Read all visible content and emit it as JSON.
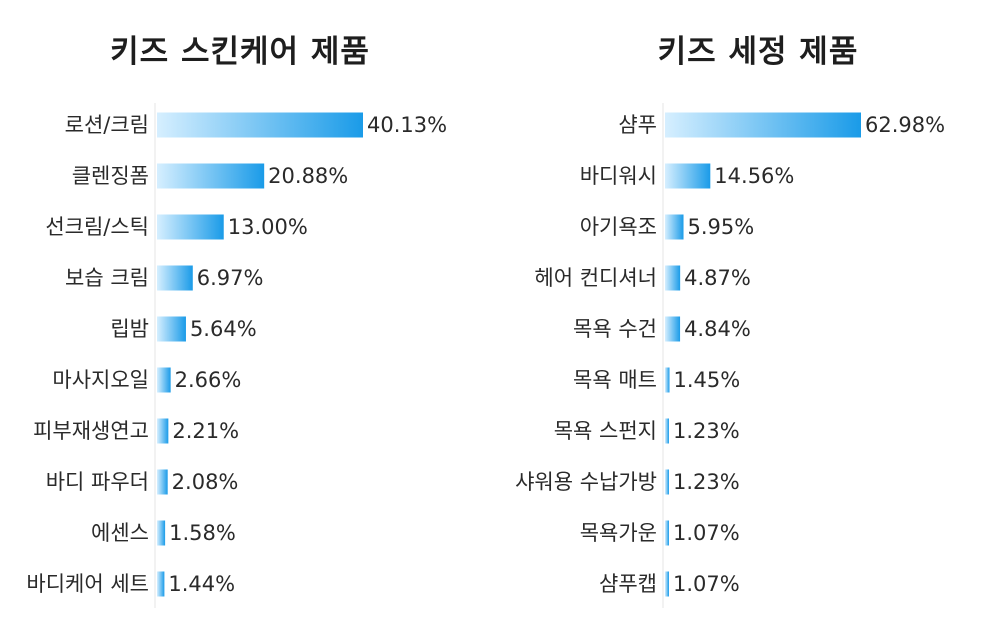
{
  "chart_data": [
    {
      "type": "bar",
      "orientation": "horizontal",
      "title": "키즈 스킨케어 제품",
      "categories": [
        "로션/크림",
        "클렌징폼",
        "선크림/스틱",
        "보습 크림",
        "립밤",
        "마사지오일",
        "피부재생연고",
        "바디 파우더",
        "에센스",
        "바디케어 세트"
      ],
      "values": [
        40.13,
        20.88,
        13.0,
        6.97,
        5.64,
        2.66,
        2.21,
        2.08,
        1.58,
        1.44
      ],
      "value_labels": [
        "40.13%",
        "20.88%",
        "13.00%",
        "6.97%",
        "5.64%",
        "2.66%",
        "2.21%",
        "2.08%",
        "1.58%",
        "1.44%"
      ],
      "unit": "%",
      "bar_color_start": "#d6efff",
      "bar_color_end": "#1a9be8"
    },
    {
      "type": "bar",
      "orientation": "horizontal",
      "title": "키즈 세정 제품",
      "categories": [
        "샴푸",
        "바디워시",
        "아기욕조",
        "헤어 컨디셔너",
        "목욕 수건",
        "목욕 매트",
        "목욕 스펀지",
        "샤워용 수납가방",
        "목욕가운",
        "샴푸캡"
      ],
      "values": [
        62.98,
        14.56,
        5.95,
        4.87,
        4.84,
        1.45,
        1.23,
        1.23,
        1.07,
        1.07
      ],
      "value_labels": [
        "62.98%",
        "14.56%",
        "5.95%",
        "4.87%",
        "4.84%",
        "1.45%",
        "1.23%",
        "1.23%",
        "1.07%",
        "1.07%"
      ],
      "unit": "%",
      "bar_color_start": "#d6efff",
      "bar_color_end": "#1a9be8"
    }
  ]
}
